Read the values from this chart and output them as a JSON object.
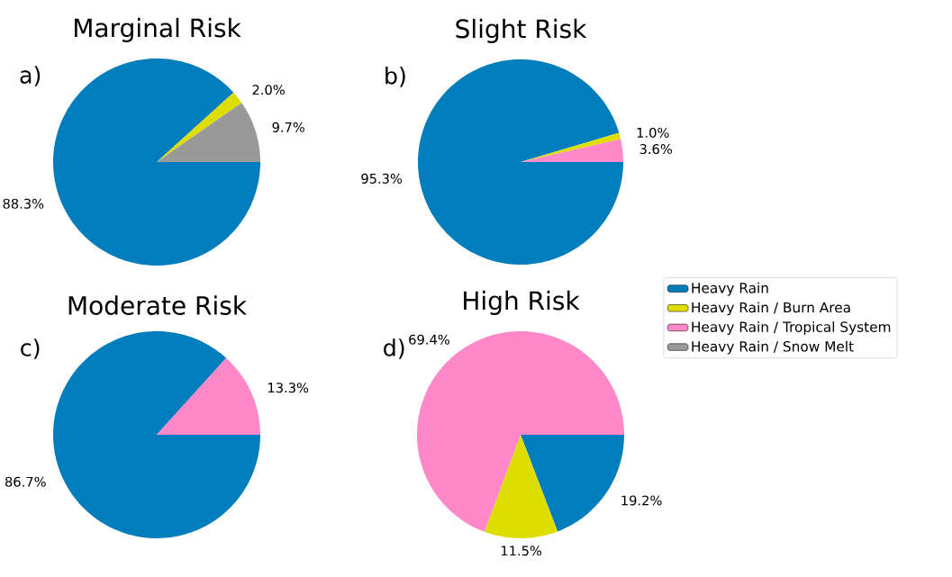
{
  "chart_data": [
    {
      "type": "pie",
      "title": "Marginal Risk",
      "annotations": [
        "a)"
      ],
      "categories": [
        null,
        null,
        null,
        null
      ],
      "values": [
        88.3,
        2.0,
        0,
        9.7
      ],
      "colors": [
        "#007dbc",
        "#dddd00",
        "#ff88c8",
        "#999999"
      ],
      "value_labels": [
        "88.3%",
        "2.0%",
        null,
        "9.7%"
      ]
    },
    {
      "type": "pie",
      "title": "Slight Risk",
      "annotations": [
        "b)"
      ],
      "categories": [
        null,
        null,
        null,
        null
      ],
      "values": [
        95.3,
        1.0,
        3.6,
        0
      ],
      "colors": [
        "#007dbc",
        "#dddd00",
        "#ff88c8",
        "#999999"
      ],
      "value_labels": [
        "95.3%",
        "1.0%",
        "3.6%",
        null
      ]
    },
    {
      "type": "pie",
      "title": "Moderate Risk",
      "annotations": [
        "c)"
      ],
      "categories": [
        null,
        null,
        null,
        null
      ],
      "values": [
        86.7,
        0,
        13.3,
        0
      ],
      "colors": [
        "#007dbc",
        "#dddd00",
        "#ff88c8",
        "#999999"
      ],
      "value_labels": [
        "86.7%",
        null,
        "13.3%",
        null
      ]
    },
    {
      "type": "pie",
      "title": "High Risk",
      "annotations": [
        "d)"
      ],
      "categories": [
        "Heavy Rain",
        "Heavy Rain / Burn Area",
        "Heavy Rain / Tropical System",
        "Heavy Rain / Snow Melt"
      ],
      "values": [
        19.2,
        11.5,
        69.4,
        0
      ],
      "colors": [
        "#007dbc",
        "#dddd00",
        "#ff88c8",
        "#999999"
      ],
      "value_labels": [
        "19.2%",
        "11.5%",
        "69.4%",
        null
      ],
      "legend": "right"
    }
  ]
}
